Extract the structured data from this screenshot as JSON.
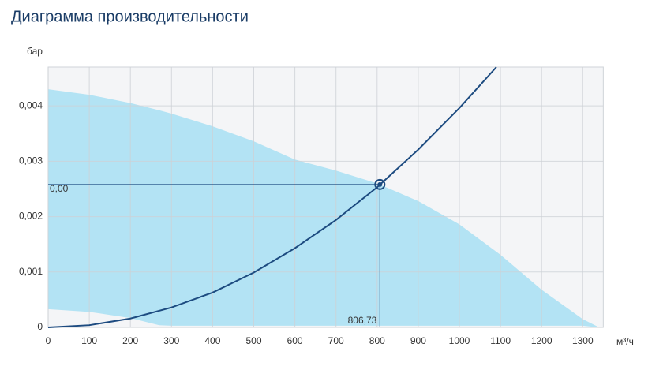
{
  "chart_data": {
    "type": "area",
    "title": "Диаграмма производительности",
    "y_label": "бар",
    "x_label": "м³/ч",
    "xlim": [
      0,
      1350
    ],
    "ylim": [
      0,
      0.0047
    ],
    "xticks": [
      0,
      100,
      200,
      300,
      400,
      500,
      600,
      700,
      800,
      900,
      1000,
      1100,
      1200,
      1300
    ],
    "yticks": [
      0,
      {
        "value": 0.001,
        "label": "0,001"
      },
      {
        "value": 0.002,
        "label": "0,002"
      },
      {
        "value": 0.003,
        "label": "0,003"
      },
      {
        "value": 0.004,
        "label": "0,004"
      }
    ],
    "grid": true,
    "area": {
      "color": "#b3e3f4",
      "x": [
        0,
        100,
        200,
        270,
        300,
        400,
        500,
        600,
        700,
        800,
        900,
        1000,
        1100,
        1200,
        1300,
        1340
      ],
      "upper": [
        0.0043,
        0.0042,
        0.00405,
        0.00392,
        0.00386,
        0.00363,
        0.00336,
        0.00303,
        0.00283,
        0.0026,
        0.00228,
        0.00186,
        0.00131,
        0.00068,
        0.00015,
        0
      ],
      "lower": [
        0.00033,
        0.00028,
        0.00017,
        4e-05,
        3e-05,
        3e-05,
        3e-05,
        3e-05,
        3e-05,
        3e-05,
        3e-05,
        3e-05,
        3e-05,
        3e-05,
        3e-05,
        0
      ]
    },
    "curve": {
      "color": "#1d4b80",
      "x": [
        0,
        100,
        200,
        300,
        400,
        500,
        600,
        700,
        800,
        900,
        1000,
        1090
      ],
      "values": [
        0,
        4e-05,
        0.00016,
        0.00036,
        0.00063,
        0.00099,
        0.00143,
        0.00194,
        0.00253,
        0.00321,
        0.00396,
        0.0047
      ]
    },
    "operating_point": {
      "x": 806.73,
      "y": 0.00258,
      "x_label": "806,73",
      "y_label": "0,00",
      "color": "#1d4b80"
    }
  }
}
